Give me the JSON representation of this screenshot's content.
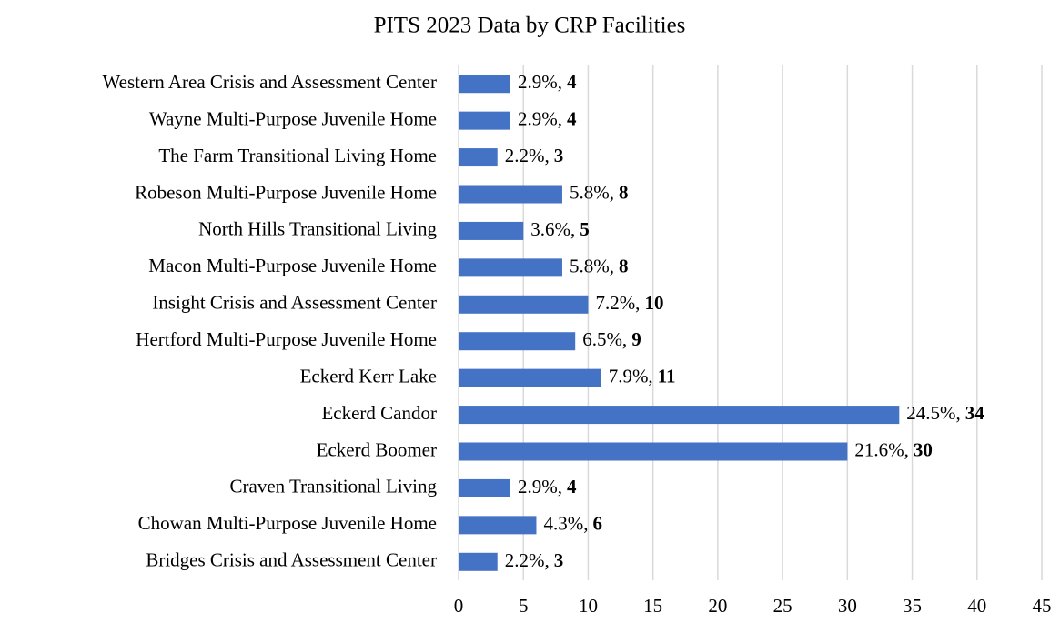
{
  "chart_data": {
    "type": "barh",
    "title": "PITS 2023 Data by CRP Facilities",
    "categories": [
      "Western Area Crisis and Assessment Center",
      "Wayne Multi-Purpose Juvenile Home",
      "The Farm Transitional Living Home",
      "Robeson Multi-Purpose Juvenile Home",
      "North Hills Transitional Living",
      "Macon Multi-Purpose Juvenile Home",
      "Insight Crisis and Assessment Center",
      "Hertford Multi-Purpose Juvenile Home",
      "Eckerd Kerr Lake",
      "Eckerd Candor",
      "Eckerd Boomer",
      "Craven Transitional Living",
      "Chowan Multi-Purpose Juvenile Home",
      "Bridges Crisis and Assessment Center"
    ],
    "values": [
      4,
      4,
      3,
      8,
      5,
      8,
      10,
      9,
      11,
      34,
      30,
      4,
      6,
      3
    ],
    "percent_labels": [
      "2.9%,",
      "2.9%,",
      "2.2%,",
      "5.8%,",
      "3.6%,",
      "5.8%,",
      "7.2%,",
      "6.5%,",
      "7.9%,",
      "24.5%,",
      "21.6%,",
      "2.9%,",
      "4.3%,",
      "2.2%,"
    ],
    "color": "#4472c4",
    "xlim": [
      0,
      45
    ],
    "xticks": [
      0,
      5,
      10,
      15,
      20,
      25,
      30,
      35,
      40,
      45
    ],
    "grid": true
  }
}
